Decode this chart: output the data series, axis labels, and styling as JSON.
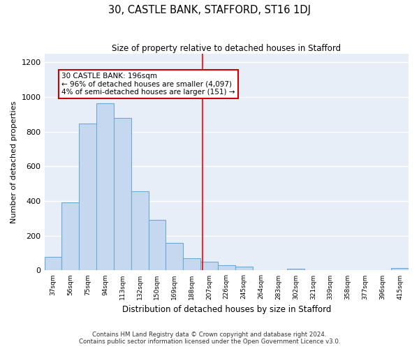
{
  "title": "30, CASTLE BANK, STAFFORD, ST16 1DJ",
  "subtitle": "Size of property relative to detached houses in Stafford",
  "xlabel": "Distribution of detached houses by size in Stafford",
  "ylabel": "Number of detached properties",
  "categories": [
    "37sqm",
    "56sqm",
    "75sqm",
    "94sqm",
    "113sqm",
    "132sqm",
    "150sqm",
    "169sqm",
    "188sqm",
    "207sqm",
    "226sqm",
    "245sqm",
    "264sqm",
    "283sqm",
    "302sqm",
    "321sqm",
    "339sqm",
    "358sqm",
    "377sqm",
    "396sqm",
    "415sqm"
  ],
  "values": [
    80,
    390,
    845,
    965,
    880,
    455,
    290,
    160,
    70,
    50,
    30,
    20,
    0,
    0,
    10,
    0,
    0,
    0,
    0,
    0,
    12
  ],
  "bar_color": "#c5d8f0",
  "bar_edge_color": "#6aaad4",
  "background_color": "#e8eef8",
  "grid_color": "#ffffff",
  "red_line_x": 8.62,
  "annotation_line1": "30 CASTLE BANK: 196sqm",
  "annotation_line2": "← 96% of detached houses are smaller (4,097)",
  "annotation_line3": "4% of semi-detached houses are larger (151) →",
  "annotation_box_color": "#ffffff",
  "annotation_box_edge": "#cc0000",
  "ylim": [
    0,
    1250
  ],
  "yticks": [
    0,
    200,
    400,
    600,
    800,
    1000,
    1200
  ],
  "footnote1": "Contains HM Land Registry data © Crown copyright and database right 2024.",
  "footnote2": "Contains public sector information licensed under the Open Government Licence v3.0."
}
